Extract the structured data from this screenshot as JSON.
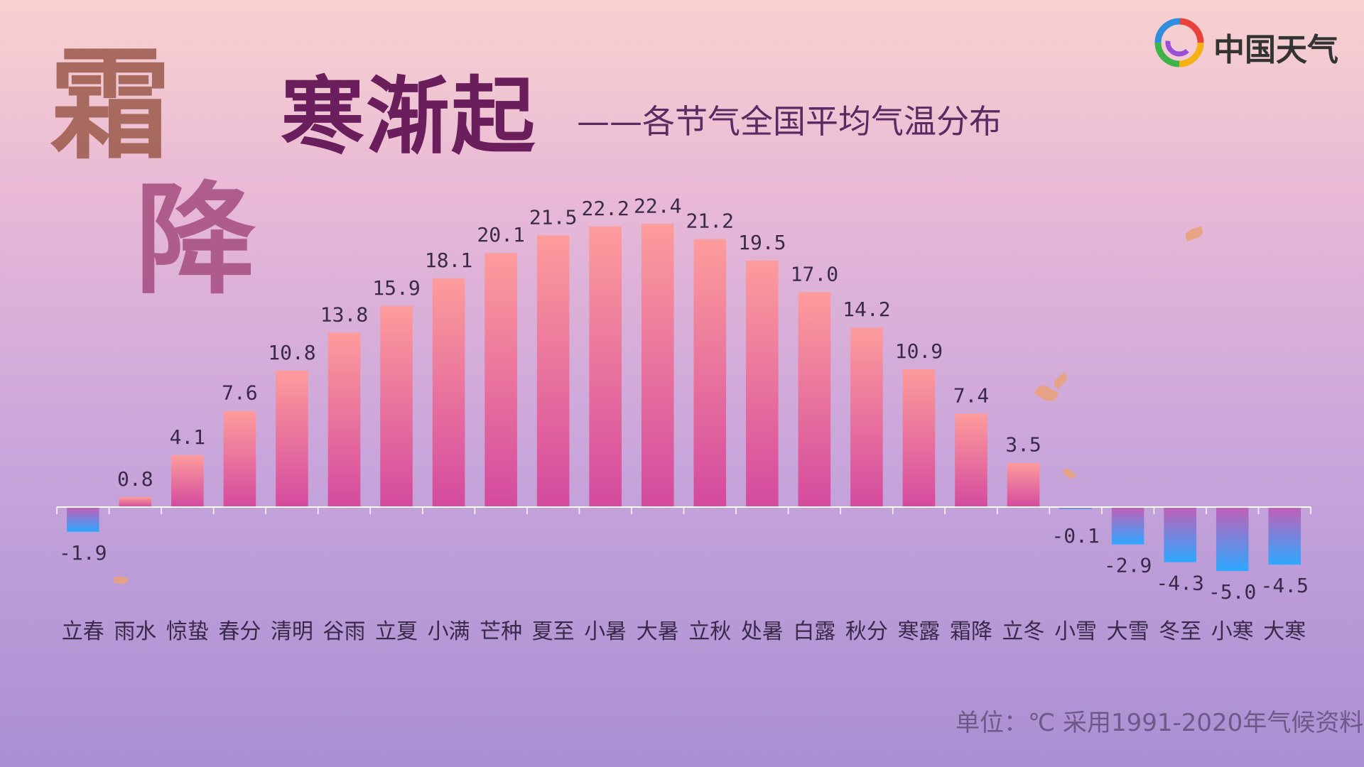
{
  "decoration": {
    "calligraphy_1": "霜",
    "calligraphy_2": "降"
  },
  "title": "寒渐起",
  "subtitle": "——各节气全国平均气温分布",
  "logo": {
    "text": "中国天气"
  },
  "note": "单位：℃  采用1991-2020年气候资料",
  "colors": {
    "warm_top": "#fd9c9c",
    "warm_bottom": "#d44a9e",
    "cold_top": "#c060b8",
    "cold_bottom": "#2ea8ff",
    "axis": "#ffffff"
  },
  "chart_data": {
    "type": "bar",
    "title": "寒渐起",
    "subtitle": "——各节气全国平均气温分布",
    "xlabel": "",
    "ylabel": "",
    "categories": [
      "立春",
      "雨水",
      "惊蛰",
      "春分",
      "清明",
      "谷雨",
      "立夏",
      "小满",
      "芒种",
      "夏至",
      "小暑",
      "大暑",
      "立秋",
      "处暑",
      "白露",
      "秋分",
      "寒露",
      "霜降",
      "立冬",
      "小雪",
      "大雪",
      "冬至",
      "小寒",
      "大寒"
    ],
    "values": [
      -1.9,
      0.8,
      4.1,
      7.6,
      10.8,
      13.8,
      15.9,
      18.1,
      20.1,
      21.5,
      22.2,
      22.4,
      21.2,
      19.5,
      17.0,
      14.2,
      10.9,
      7.4,
      3.5,
      -0.1,
      -2.9,
      -4.3,
      -5.0,
      -4.5
    ],
    "labels": [
      "-1.9",
      "0.8",
      "4.1",
      "7.6",
      "10.8",
      "13.8",
      "15.9",
      "18.1",
      "20.1",
      "21.5",
      "22.2",
      "22.4",
      "21.2",
      "19.5",
      "17.0",
      "14.2",
      "10.9",
      "7.4",
      "3.5",
      "-0.1",
      "-2.9",
      "-4.3",
      "-5.0",
      "-4.5"
    ],
    "grid": false,
    "legend": "none"
  }
}
